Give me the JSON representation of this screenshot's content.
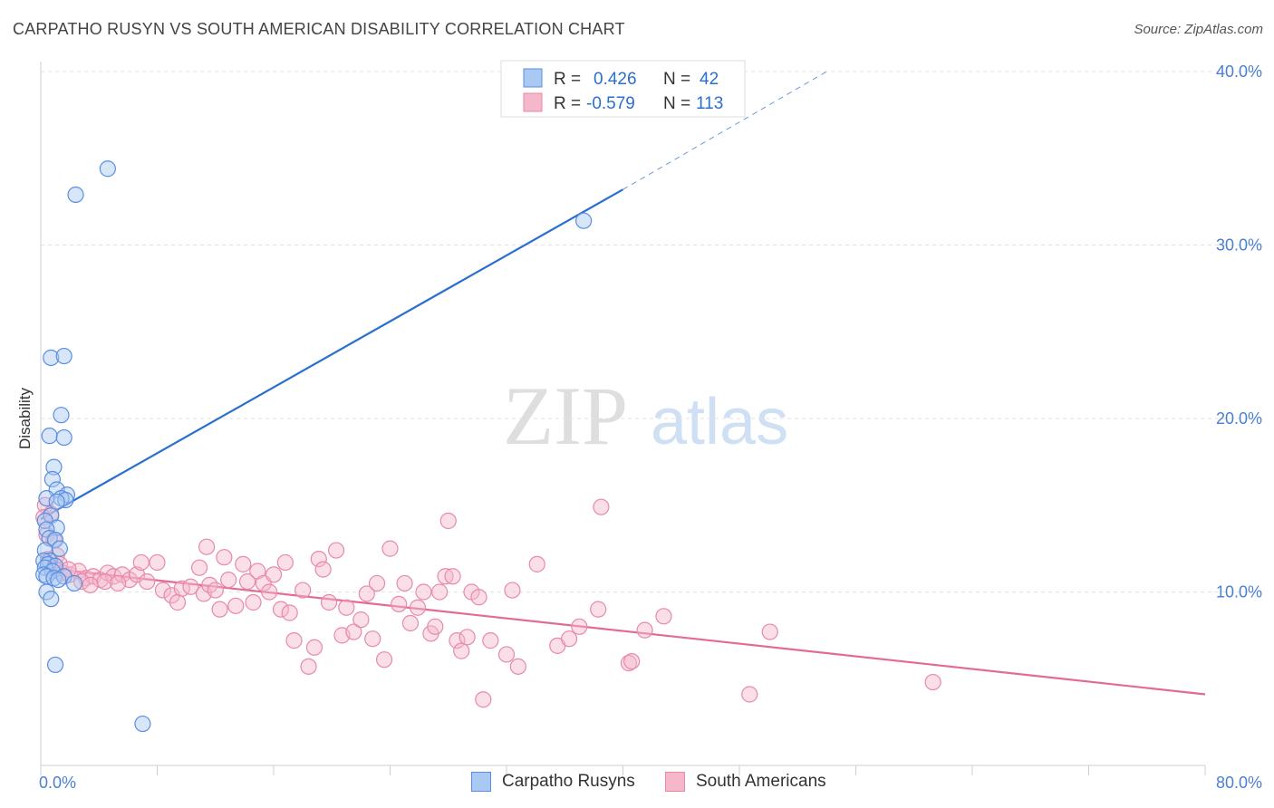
{
  "header": {
    "title": "CARPATHO RUSYN VS SOUTH AMERICAN DISABILITY CORRELATION CHART",
    "source": "Source: ZipAtlas.com"
  },
  "watermark": {
    "zip": "ZIP",
    "atlas": "atlas"
  },
  "colors": {
    "blue_fill": "#a9c8f2",
    "blue_stroke": "#5b8ee0",
    "blue_line": "#2a6fcf",
    "pink_fill": "#f5b8cb",
    "pink_stroke": "#e889a8",
    "pink_line": "#e26a96",
    "tick_text": "#4a7fd4"
  },
  "legend": {
    "rows": [
      {
        "r_label": "R =",
        "r_value": "0.426",
        "n_label": "N =",
        "n_value": "42"
      },
      {
        "r_label": "R =",
        "r_value": "-0.579",
        "n_label": "N =",
        "n_value": "113"
      }
    ]
  },
  "bottom_legend": {
    "blue": "Carpatho Rusyns",
    "pink": "South Americans"
  },
  "chart_data": {
    "type": "scatter",
    "title": "CARPATHO RUSYN VS SOUTH AMERICAN DISABILITY CORRELATION CHART",
    "xlabel": "",
    "ylabel": "Disability",
    "xlim": [
      0,
      80
    ],
    "ylim": [
      0,
      40
    ],
    "x_tick_labels": [
      "0.0%",
      "80.0%"
    ],
    "y_ticks": [
      10,
      20,
      30,
      40
    ],
    "y_tick_labels": [
      "10.0%",
      "20.0%",
      "30.0%",
      "40.0%"
    ],
    "grid": true,
    "legend_position": "top-center",
    "series": [
      {
        "name": "Carpatho Rusyns",
        "color": "#5b8ee0",
        "R": 0.426,
        "N": 42,
        "trend": {
          "x0": 0,
          "y0": 14.2,
          "x1": 40,
          "y1": 33.2,
          "dash_x1": 54,
          "dash_y1": 40
        },
        "points": [
          [
            4.6,
            34.4
          ],
          [
            2.4,
            32.9
          ],
          [
            37.3,
            31.4
          ],
          [
            0.7,
            23.5
          ],
          [
            1.6,
            23.6
          ],
          [
            1.4,
            20.2
          ],
          [
            0.6,
            19.0
          ],
          [
            1.6,
            18.9
          ],
          [
            0.9,
            17.2
          ],
          [
            0.8,
            16.5
          ],
          [
            1.1,
            15.9
          ],
          [
            1.8,
            15.6
          ],
          [
            1.4,
            15.4
          ],
          [
            1.7,
            15.3
          ],
          [
            0.4,
            15.4
          ],
          [
            1.1,
            15.2
          ],
          [
            0.7,
            14.4
          ],
          [
            0.3,
            14.1
          ],
          [
            1.1,
            13.7
          ],
          [
            0.4,
            13.6
          ],
          [
            0.6,
            13.1
          ],
          [
            1.0,
            13.0
          ],
          [
            0.3,
            12.4
          ],
          [
            1.3,
            12.5
          ],
          [
            0.6,
            11.8
          ],
          [
            0.2,
            11.8
          ],
          [
            0.5,
            11.6
          ],
          [
            1.0,
            11.5
          ],
          [
            0.3,
            11.4
          ],
          [
            0.8,
            11.2
          ],
          [
            0.2,
            11.0
          ],
          [
            0.4,
            10.9
          ],
          [
            0.9,
            10.8
          ],
          [
            1.6,
            10.9
          ],
          [
            1.2,
            10.7
          ],
          [
            2.3,
            10.5
          ],
          [
            0.4,
            10.0
          ],
          [
            0.7,
            9.6
          ],
          [
            1.0,
            5.8
          ],
          [
            7.0,
            2.4
          ]
        ]
      },
      {
        "name": "South Americans",
        "color": "#e889a8",
        "R": -0.579,
        "N": 113,
        "trend": {
          "x0": 0,
          "y0": 11.4,
          "x1": 80,
          "y1": 4.1
        },
        "points": [
          [
            0.3,
            15.0
          ],
          [
            0.2,
            14.3
          ],
          [
            0.7,
            14.5
          ],
          [
            0.4,
            13.3
          ],
          [
            0.9,
            13.0
          ],
          [
            1.1,
            12.1
          ],
          [
            0.5,
            11.9
          ],
          [
            1.3,
            11.6
          ],
          [
            1.0,
            11.3
          ],
          [
            1.5,
            11.1
          ],
          [
            2.0,
            11.0
          ],
          [
            2.6,
            11.2
          ],
          [
            3.1,
            10.8
          ],
          [
            3.6,
            10.9
          ],
          [
            4.1,
            10.7
          ],
          [
            4.6,
            11.1
          ],
          [
            5.0,
            10.9
          ],
          [
            5.6,
            11.0
          ],
          [
            6.1,
            10.7
          ],
          [
            6.6,
            11.0
          ],
          [
            1.9,
            11.3
          ],
          [
            2.8,
            10.6
          ],
          [
            3.4,
            10.4
          ],
          [
            4.4,
            10.6
          ],
          [
            5.3,
            10.5
          ],
          [
            6.9,
            11.7
          ],
          [
            7.3,
            10.6
          ],
          [
            8.0,
            11.7
          ],
          [
            8.4,
            10.1
          ],
          [
            9.0,
            9.8
          ],
          [
            9.4,
            9.4
          ],
          [
            9.7,
            10.2
          ],
          [
            10.3,
            10.3
          ],
          [
            10.9,
            11.4
          ],
          [
            11.2,
            9.9
          ],
          [
            11.4,
            12.6
          ],
          [
            11.6,
            10.4
          ],
          [
            12.0,
            10.1
          ],
          [
            12.3,
            9.0
          ],
          [
            12.6,
            12.0
          ],
          [
            12.9,
            10.7
          ],
          [
            13.4,
            9.2
          ],
          [
            13.9,
            11.6
          ],
          [
            14.2,
            10.6
          ],
          [
            14.6,
            9.4
          ],
          [
            14.9,
            11.2
          ],
          [
            15.3,
            10.5
          ],
          [
            15.7,
            10.0
          ],
          [
            16.0,
            11.0
          ],
          [
            16.5,
            9.0
          ],
          [
            16.8,
            11.7
          ],
          [
            17.1,
            8.8
          ],
          [
            17.4,
            7.2
          ],
          [
            18.0,
            10.1
          ],
          [
            18.4,
            5.7
          ],
          [
            18.8,
            6.8
          ],
          [
            19.1,
            11.9
          ],
          [
            19.4,
            11.3
          ],
          [
            19.8,
            9.4
          ],
          [
            20.3,
            12.4
          ],
          [
            20.7,
            7.5
          ],
          [
            21.0,
            9.1
          ],
          [
            21.5,
            7.7
          ],
          [
            22.0,
            8.4
          ],
          [
            22.4,
            9.9
          ],
          [
            22.8,
            7.3
          ],
          [
            23.1,
            10.5
          ],
          [
            23.6,
            6.1
          ],
          [
            24.0,
            12.5
          ],
          [
            24.6,
            9.3
          ],
          [
            25.0,
            10.5
          ],
          [
            25.4,
            8.2
          ],
          [
            25.9,
            9.1
          ],
          [
            26.3,
            10.0
          ],
          [
            26.8,
            7.6
          ],
          [
            27.1,
            8.0
          ],
          [
            27.4,
            10.0
          ],
          [
            27.8,
            10.9
          ],
          [
            28.0,
            14.1
          ],
          [
            28.3,
            10.9
          ],
          [
            28.6,
            7.2
          ],
          [
            28.9,
            6.6
          ],
          [
            29.3,
            7.4
          ],
          [
            29.6,
            10.0
          ],
          [
            30.1,
            9.7
          ],
          [
            30.4,
            3.8
          ],
          [
            30.9,
            7.2
          ],
          [
            32.0,
            6.4
          ],
          [
            32.4,
            10.1
          ],
          [
            32.8,
            5.7
          ],
          [
            34.1,
            11.6
          ],
          [
            35.5,
            6.9
          ],
          [
            36.3,
            7.3
          ],
          [
            37.0,
            8.0
          ],
          [
            38.3,
            9.0
          ],
          [
            38.5,
            14.9
          ],
          [
            40.4,
            5.9
          ],
          [
            40.6,
            6.0
          ],
          [
            41.5,
            7.8
          ],
          [
            42.8,
            8.6
          ],
          [
            48.7,
            4.1
          ],
          [
            50.1,
            7.7
          ],
          [
            61.3,
            4.8
          ]
        ]
      }
    ]
  }
}
